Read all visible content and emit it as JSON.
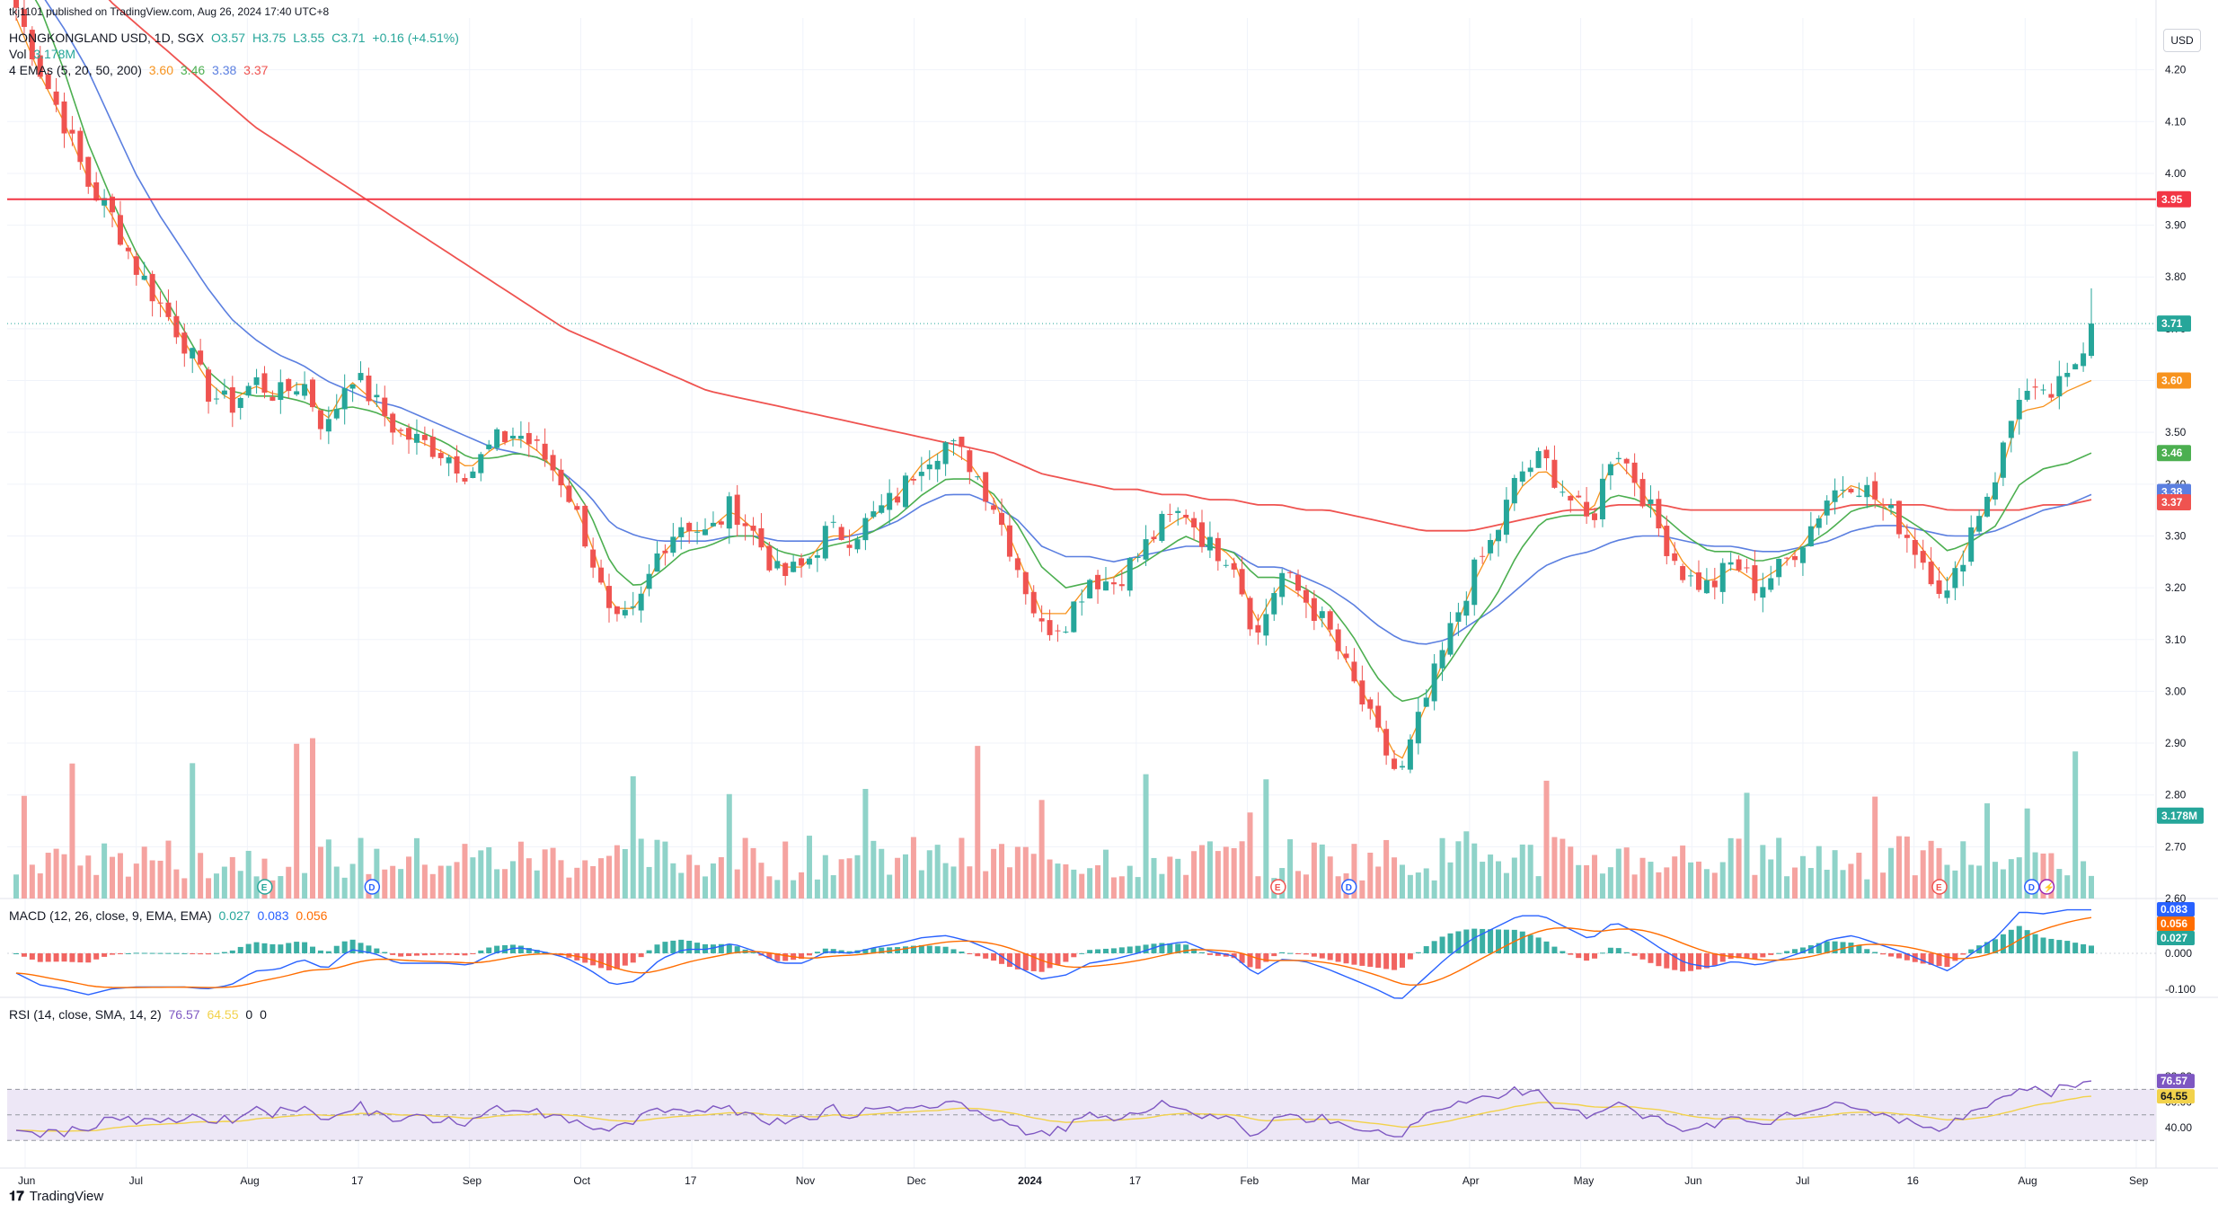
{
  "header": {
    "published_line": "tkj1101 published on TradingView.com, Aug 26, 2024 17:40 UTC+8",
    "symbol": "HONGKONGLAND USD, 1D, SGX",
    "open": "O3.57",
    "high": "H3.75",
    "low": "L3.55",
    "close": "C3.71",
    "change": "+0.16 (+4.51%)",
    "vol_label": "Vol",
    "vol_value": "3.178M",
    "ema_label": "4 EMAs (5, 20, 50, 200)",
    "ema_values": [
      "3.60",
      "3.46",
      "3.38",
      "3.37"
    ],
    "macd_label": "MACD (12, 26, close, 9, EMA, EMA)",
    "macd_values": [
      "0.027",
      "0.083",
      "0.056"
    ],
    "rsi_label": "RSI (14, close, SMA, 14, 2)",
    "rsi_values": [
      "76.57",
      "64.55",
      "0",
      "0"
    ]
  },
  "currency_button": "USD",
  "brand": {
    "logo": "tv-logo-icon",
    "name": "TradingView"
  },
  "colors": {
    "up": "#26a69a",
    "down": "#ef5350",
    "vol_up": "#8fd3c9",
    "vol_down": "#f5a3a0",
    "ema5": "#f7931e",
    "ema20": "#4caf50",
    "ema50": "#5b7fe0",
    "ema200": "#ef5350",
    "macd": "#2962ff",
    "signal": "#ff6d00",
    "rsi": "#7e57c2",
    "rsi_ma": "#f2d24b",
    "rsi_band": "#ede7f6",
    "resistance": "#f23645"
  },
  "chart_data": {
    "type": "candlestick",
    "price_axis": {
      "ylim": [
        2.6,
        4.3
      ],
      "ticks": [
        "4.20",
        "4.10",
        "4.00",
        "3.90",
        "3.80",
        "3.70",
        "3.60",
        "3.50",
        "3.40",
        "3.30",
        "3.20",
        "3.10",
        "3.00",
        "2.90",
        "2.80",
        "2.70",
        "2.60"
      ]
    },
    "time_axis": [
      "Jun",
      "Jul",
      "Aug",
      "17",
      "Sep",
      "Oct",
      "17",
      "Nov",
      "Dec",
      "2024",
      "17",
      "Feb",
      "Mar",
      "Apr",
      "May",
      "Jun",
      "Jul",
      "16",
      "Aug",
      "Sep"
    ],
    "horizontal_line": 3.95,
    "last_close": 3.71,
    "price_badges": [
      {
        "value": "3.95",
        "role": "resistance"
      },
      {
        "value": "3.71",
        "role": "last"
      },
      {
        "value": "3.60",
        "role": "ema5"
      },
      {
        "value": "3.46",
        "role": "ema20"
      },
      {
        "value": "3.38",
        "role": "ema50"
      },
      {
        "value": "3.37",
        "role": "ema200"
      },
      {
        "value": "3.178M",
        "role": "volume"
      }
    ],
    "close_path": [
      4.32,
      4.2,
      4.1,
      3.98,
      3.92,
      3.82,
      3.75,
      3.68,
      3.58,
      3.55,
      3.6,
      3.57,
      3.6,
      3.5,
      3.62,
      3.56,
      3.5,
      3.48,
      3.46,
      3.42,
      3.48,
      3.5,
      3.46,
      3.4,
      3.28,
      3.12,
      3.15,
      3.28,
      3.33,
      3.3,
      3.36,
      3.3,
      3.22,
      3.24,
      3.31,
      3.3,
      3.34,
      3.38,
      3.45,
      3.48,
      3.44,
      3.36,
      3.24,
      3.12,
      3.14,
      3.22,
      3.21,
      3.26,
      3.32,
      3.35,
      3.28,
      3.26,
      3.1,
      3.23,
      3.18,
      3.12,
      3.02,
      2.92,
      2.83,
      2.97,
      3.1,
      3.22,
      3.3,
      3.42,
      3.45,
      3.38,
      3.32,
      3.48,
      3.4,
      3.3,
      3.22,
      3.2,
      3.25,
      3.2,
      3.24,
      3.3,
      3.38,
      3.41,
      3.37,
      3.32,
      3.25,
      3.18,
      3.32,
      3.42,
      3.58,
      3.56,
      3.6,
      3.71
    ],
    "ema5": [
      4.3,
      4.19,
      4.1,
      3.99,
      3.92,
      3.83,
      3.75,
      3.68,
      3.6,
      3.56,
      3.59,
      3.57,
      3.6,
      3.52,
      3.6,
      3.56,
      3.5,
      3.48,
      3.46,
      3.43,
      3.47,
      3.49,
      3.46,
      3.4,
      3.3,
      3.16,
      3.16,
      3.26,
      3.31,
      3.31,
      3.35,
      3.31,
      3.24,
      3.24,
      3.3,
      3.3,
      3.34,
      3.38,
      3.44,
      3.47,
      3.44,
      3.37,
      3.26,
      3.15,
      3.15,
      3.21,
      3.22,
      3.26,
      3.31,
      3.34,
      3.29,
      3.26,
      3.13,
      3.21,
      3.18,
      3.12,
      3.04,
      2.95,
      2.86,
      2.96,
      3.08,
      3.2,
      3.29,
      3.39,
      3.43,
      3.39,
      3.34,
      3.45,
      3.4,
      3.32,
      3.24,
      3.21,
      3.24,
      3.21,
      3.24,
      3.29,
      3.36,
      3.4,
      3.37,
      3.33,
      3.27,
      3.21,
      3.3,
      3.39,
      3.54,
      3.55,
      3.58,
      3.6
    ],
    "ema20": [
      4.4,
      4.32,
      4.2,
      4.06,
      3.95,
      3.85,
      3.78,
      3.7,
      3.62,
      3.58,
      3.57,
      3.57,
      3.56,
      3.54,
      3.55,
      3.54,
      3.52,
      3.5,
      3.48,
      3.45,
      3.45,
      3.46,
      3.45,
      3.42,
      3.35,
      3.24,
      3.2,
      3.23,
      3.27,
      3.28,
      3.3,
      3.3,
      3.27,
      3.26,
      3.28,
      3.29,
      3.31,
      3.34,
      3.38,
      3.41,
      3.41,
      3.38,
      3.32,
      3.24,
      3.2,
      3.21,
      3.22,
      3.24,
      3.27,
      3.3,
      3.28,
      3.27,
      3.22,
      3.22,
      3.2,
      3.17,
      3.11,
      3.03,
      2.98,
      2.99,
      3.05,
      3.12,
      3.18,
      3.27,
      3.33,
      3.34,
      3.34,
      3.38,
      3.37,
      3.34,
      3.3,
      3.27,
      3.27,
      3.25,
      3.26,
      3.28,
      3.31,
      3.35,
      3.36,
      3.34,
      3.31,
      3.27,
      3.29,
      3.32,
      3.4,
      3.43,
      3.44,
      3.46
    ],
    "ema50": [
      4.4,
      4.35,
      4.28,
      4.2,
      4.1,
      4.0,
      3.92,
      3.85,
      3.78,
      3.72,
      3.68,
      3.65,
      3.63,
      3.6,
      3.58,
      3.56,
      3.55,
      3.53,
      3.51,
      3.49,
      3.47,
      3.46,
      3.45,
      3.42,
      3.38,
      3.32,
      3.3,
      3.29,
      3.29,
      3.29,
      3.3,
      3.3,
      3.29,
      3.29,
      3.29,
      3.3,
      3.31,
      3.33,
      3.36,
      3.38,
      3.38,
      3.36,
      3.33,
      3.28,
      3.26,
      3.26,
      3.25,
      3.26,
      3.27,
      3.28,
      3.28,
      3.27,
      3.24,
      3.24,
      3.22,
      3.2,
      3.17,
      3.13,
      3.1,
      3.09,
      3.1,
      3.13,
      3.16,
      3.2,
      3.24,
      3.26,
      3.27,
      3.29,
      3.3,
      3.3,
      3.29,
      3.28,
      3.28,
      3.27,
      3.27,
      3.28,
      3.29,
      3.31,
      3.32,
      3.32,
      3.31,
      3.3,
      3.3,
      3.31,
      3.33,
      3.35,
      3.36,
      3.38
    ],
    "ema200": [
      4.5,
      4.46,
      4.42,
      4.38,
      4.33,
      4.29,
      4.25,
      4.21,
      4.17,
      4.13,
      4.09,
      4.06,
      4.03,
      4.0,
      3.97,
      3.94,
      3.91,
      3.88,
      3.85,
      3.82,
      3.79,
      3.76,
      3.73,
      3.7,
      3.68,
      3.66,
      3.64,
      3.62,
      3.6,
      3.58,
      3.57,
      3.56,
      3.55,
      3.54,
      3.53,
      3.52,
      3.51,
      3.5,
      3.49,
      3.48,
      3.47,
      3.46,
      3.44,
      3.42,
      3.41,
      3.4,
      3.39,
      3.39,
      3.38,
      3.38,
      3.37,
      3.37,
      3.36,
      3.36,
      3.35,
      3.35,
      3.34,
      3.33,
      3.32,
      3.31,
      3.31,
      3.31,
      3.32,
      3.33,
      3.34,
      3.35,
      3.35,
      3.36,
      3.36,
      3.36,
      3.35,
      3.35,
      3.35,
      3.35,
      3.35,
      3.35,
      3.35,
      3.36,
      3.36,
      3.36,
      3.36,
      3.35,
      3.35,
      3.35,
      3.35,
      3.36,
      3.36,
      3.37
    ],
    "volume_badge": "3.178M",
    "volume_peaks_note": "",
    "event_markers": [
      {
        "label": "E"
      },
      {
        "label": "D"
      },
      {
        "label": "E"
      },
      {
        "label": "D"
      },
      {
        "label": "E"
      },
      {
        "label": "D"
      },
      {
        "label": "⚡"
      }
    ],
    "macd": {
      "ylim": [
        -0.1,
        0.15
      ],
      "ticks": [
        "0.000",
        "-0.100"
      ],
      "badges": [
        "0.083",
        "0.056",
        "0.027"
      ]
    },
    "rsi": {
      "ylim": [
        25,
        85
      ],
      "ticks": [
        "80.00",
        "60.00",
        "40.00"
      ],
      "badges": [
        "76.57",
        "64.55"
      ],
      "bands": [
        70,
        50,
        30
      ]
    }
  }
}
